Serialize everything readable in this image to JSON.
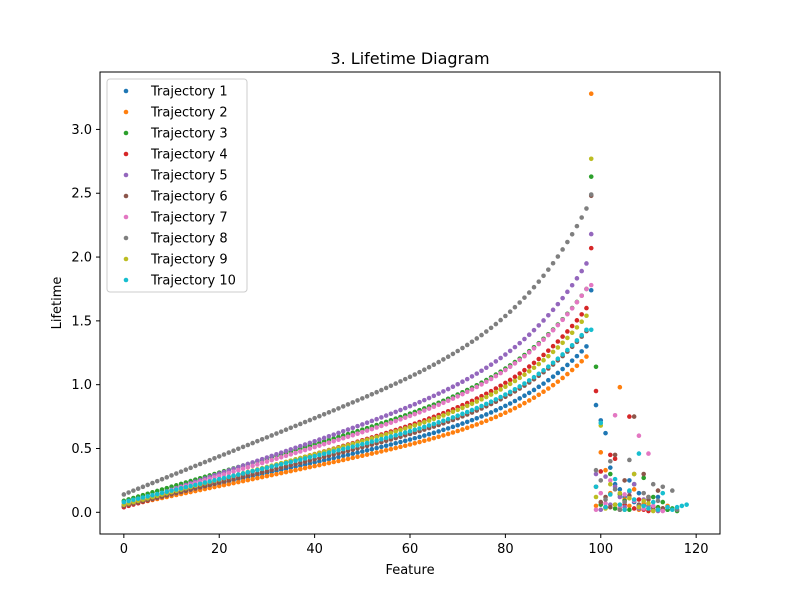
{
  "chart_data": {
    "type": "scatter",
    "title": "3. Lifetime Diagram",
    "xlabel": "Feature",
    "ylabel": "Lifetime",
    "xlim": [
      -5,
      125
    ],
    "ylim": [
      -0.17,
      3.45
    ],
    "xticks": [
      0,
      20,
      40,
      60,
      80,
      100,
      120
    ],
    "yticks": [
      0.0,
      0.5,
      1.0,
      1.5,
      2.0,
      2.5,
      3.0
    ],
    "ytick_labels": [
      "0.0",
      "0.5",
      "1.0",
      "1.5",
      "2.0",
      "2.5",
      "3.0"
    ],
    "grid": false,
    "legend_position": "top-left",
    "series": [
      {
        "name": "Trajectory 1",
        "color": "#1f77b4",
        "peak_index": 98,
        "start": 0.06,
        "before_peak": 1.3,
        "peak": 1.74,
        "tail": [
          0.84,
          0.72,
          0.62,
          0.35,
          0.22,
          0.18,
          0.12,
          0.25,
          0.08,
          0.15,
          0.06,
          0.05,
          0.04,
          0.12,
          0.03,
          0.02
        ]
      },
      {
        "name": "Trajectory 2",
        "color": "#ff7f0e",
        "peak_index": 98,
        "start": 0.05,
        "before_peak": 1.22,
        "peak": 3.28,
        "tail": [
          0.05,
          0.47,
          0.33,
          0.15,
          0.06,
          0.98,
          0.1,
          0.05,
          0.18,
          0.02,
          0.07,
          0.12,
          0.04,
          0.02,
          0.03,
          0.05
        ]
      },
      {
        "name": "Trajectory 3",
        "color": "#2ca02c",
        "peak_index": 98,
        "start": 0.09,
        "before_peak": 1.75,
        "peak": 2.63,
        "tail": [
          1.14,
          0.06,
          0.04,
          0.3,
          0.03,
          0.14,
          0.09,
          0.02,
          0.22,
          0.05,
          0.27,
          0.03,
          0.12,
          0.04,
          0.08,
          0.02,
          0.03,
          0.01
        ]
      },
      {
        "name": "Trajectory 4",
        "color": "#d62728",
        "peak_index": 98,
        "start": 0.04,
        "before_peak": 1.6,
        "peak": 2.07,
        "tail": [
          0.95,
          0.32,
          0.04,
          0.45,
          0.42,
          0.02,
          0.06,
          0.75,
          0.03,
          0.1,
          0.02,
          0.01
        ]
      },
      {
        "name": "Trajectory 5",
        "color": "#9467bd",
        "peak_index": 98,
        "start": 0.05,
        "before_peak": 1.95,
        "peak": 2.18,
        "tail": [
          0.3,
          0.02,
          0.28,
          0.06,
          0.2,
          0.12,
          0.04,
          0.16,
          0.22,
          0.03,
          0.1,
          0.05,
          0.02,
          0.01
        ]
      },
      {
        "name": "Trajectory 6",
        "color": "#8c564b",
        "peak_index": 98,
        "start": 0.05,
        "before_peak": 1.42,
        "peak": 2.48,
        "tail": [
          0.2,
          0.08,
          0.12,
          0.04,
          0.45,
          0.02,
          0.25,
          0.13,
          0.75,
          0.06,
          0.3,
          0.1,
          0.04,
          0.17,
          0.03
        ]
      },
      {
        "name": "Trajectory 7",
        "color": "#e377c2",
        "peak_index": 98,
        "start": 0.06,
        "before_peak": 1.75,
        "peak": 1.78,
        "tail": [
          0.02,
          0.15,
          0.07,
          0.25,
          0.76,
          0.04,
          0.14,
          0.11,
          0.09,
          0.6,
          0.03,
          0.46,
          0.05,
          0.02,
          0.01
        ]
      },
      {
        "name": "Trajectory 8",
        "color": "#7f7f7f",
        "peak_index": 98,
        "start": 0.14,
        "before_peak": 2.38,
        "peak": 2.49,
        "tail": [
          0.33,
          0.25,
          0.1,
          0.4,
          0.18,
          0.02,
          0.08,
          0.41,
          0.3,
          0.05,
          0.15,
          0.12,
          0.22,
          0.09,
          0.2,
          0.04,
          0.17,
          0.02
        ]
      },
      {
        "name": "Trajectory 9",
        "color": "#bcbd22",
        "peak_index": 98,
        "start": 0.06,
        "before_peak": 1.54,
        "peak": 2.77,
        "tail": [
          0.12,
          0.68,
          0.03,
          0.22,
          0.06,
          0.15,
          0.02,
          0.11,
          0.3,
          0.04,
          0.09,
          0.07,
          0.01
        ]
      },
      {
        "name": "Trajectory 10",
        "color": "#17becf",
        "peak_index": 98,
        "start": 0.08,
        "before_peak": 1.43,
        "peak": 1.43,
        "tail": [
          0.2,
          0.7,
          0.04,
          0.14,
          0.26,
          0.06,
          0.02,
          0.17,
          0.1,
          0.46,
          0.05,
          0.03,
          0.08,
          0.02,
          0.15,
          0.04,
          0.02,
          0.04,
          0.05,
          0.06
        ]
      }
    ]
  }
}
